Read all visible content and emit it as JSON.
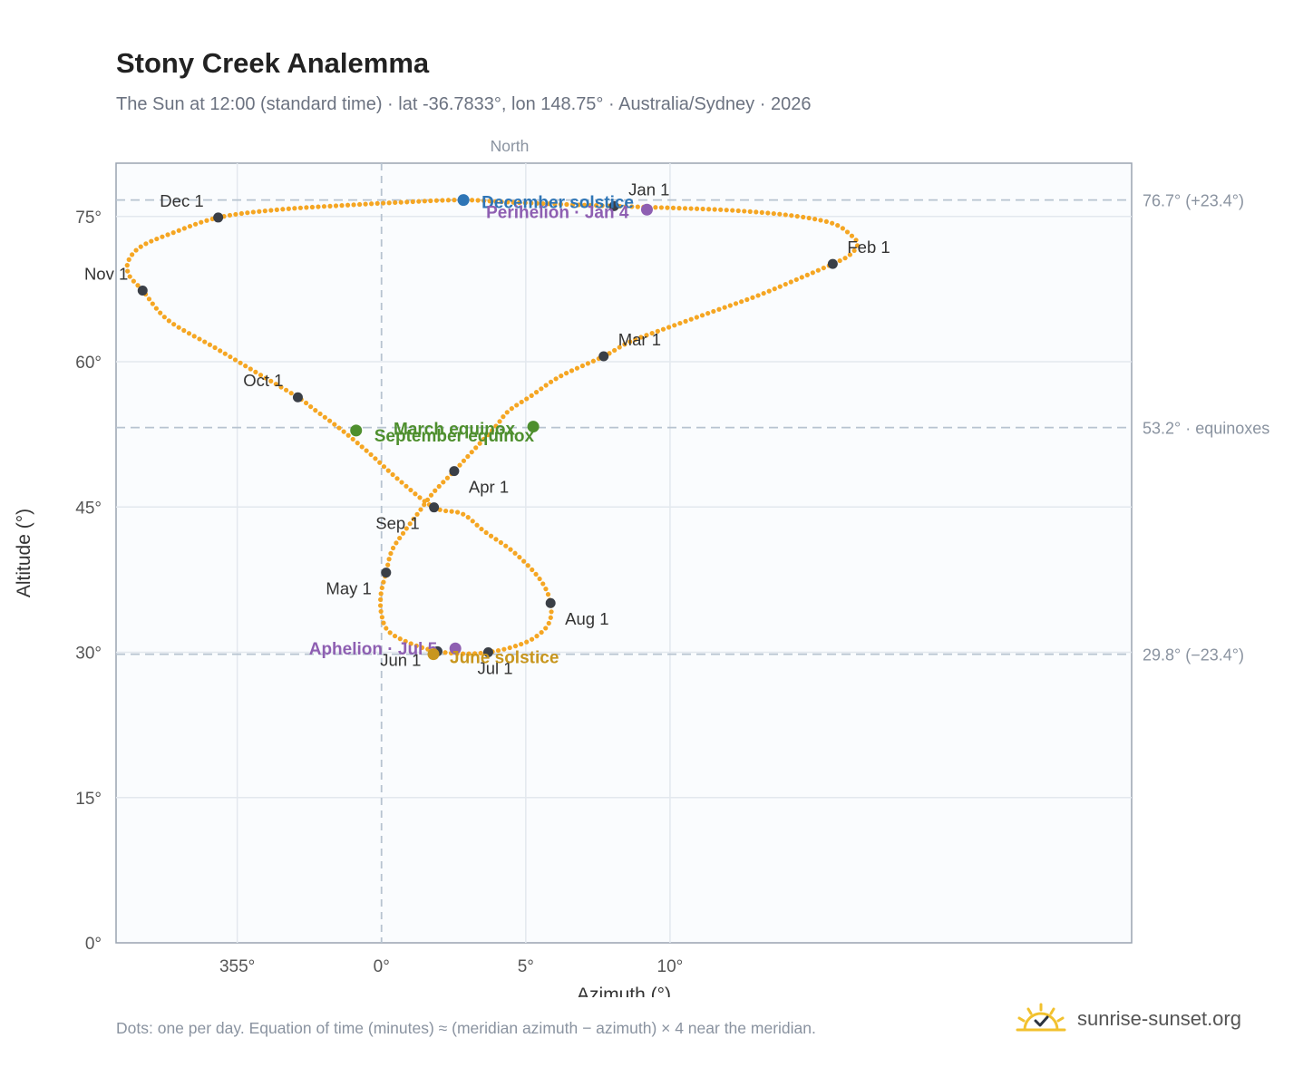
{
  "header": {
    "title": "Stony Creek Analemma",
    "subtitle": "The Sun at 12:00 (standard time) · lat -36.7833°, lon 148.75° · Australia/Sydney · 2026"
  },
  "footer": {
    "note": "Dots: one per day. Equation of time (minutes) ≈ (meridian azimuth − azimuth) × 4 near the meridian.",
    "brand": "sunrise-sunset.org"
  },
  "colors": {
    "curve": "#f5a623",
    "month_marker": "#3a3f47",
    "december_solstice": "#2e75b6",
    "june_solstice": "#c8961e",
    "equinox": "#4e8f2e",
    "apsis": "#8e5fb2",
    "axis": "#9aa3b0",
    "grid": "#e3e8ee",
    "plot_bg": "#fafcfe",
    "brand_sun": "#f2c12e"
  },
  "chart_data": {
    "type": "scatter",
    "title": "Stony Creek Analemma",
    "xlabel": "Azimuth (°)",
    "ylabel": "Altitude (°)",
    "north_label": "North",
    "xlim": [
      -4.6,
      13.0
    ],
    "ylim": [
      0,
      80.5
    ],
    "x_ticks": [
      {
        "value": -2.5,
        "label": "355°"
      },
      {
        "value": 0,
        "label": "0°"
      },
      {
        "value": 2.5,
        "label": "5°"
      },
      {
        "value": 5.0,
        "label": "10°"
      }
    ],
    "y_ticks": [
      {
        "value": 0,
        "label": "0°"
      },
      {
        "value": 15,
        "label": "15°"
      },
      {
        "value": 30,
        "label": "30°"
      },
      {
        "value": 45,
        "label": "45°"
      },
      {
        "value": 60,
        "label": "60°"
      },
      {
        "value": 75,
        "label": "75°"
      }
    ],
    "grid": true,
    "reference_lines": [
      {
        "y": 76.7,
        "label": "76.7° (+23.4°)"
      },
      {
        "y": 53.2,
        "label": "53.2° · equinoxes"
      },
      {
        "y": 29.8,
        "label": "29.8° (−23.4°)"
      }
    ],
    "series": [
      {
        "points": [
          [
            4.03,
            76.07
          ],
          [
            5.1,
            75.87
          ],
          [
            6.1,
            75.62
          ],
          [
            7.1,
            75.1
          ],
          [
            7.81,
            74.3
          ],
          [
            8.13,
            73.1
          ],
          [
            8.25,
            72.1
          ],
          [
            8.1,
            70.96
          ],
          [
            7.82,
            70.1
          ],
          [
            7.2,
            68.5
          ],
          [
            6.51,
            66.8
          ],
          [
            5.8,
            65.3
          ],
          [
            5.0,
            63.6
          ],
          [
            4.32,
            62.1
          ],
          [
            3.85,
            60.56
          ],
          [
            3.1,
            58.5
          ],
          [
            2.6,
            56.5
          ],
          [
            2.2,
            54.9
          ],
          [
            1.98,
            53.33
          ],
          [
            1.6,
            50.9
          ],
          [
            1.26,
            48.71
          ],
          [
            0.9,
            46.5
          ],
          [
            0.65,
            44.5
          ],
          [
            0.4,
            42.5
          ],
          [
            0.18,
            40.5
          ],
          [
            0.08,
            38.23
          ],
          [
            -0.01,
            36.0
          ],
          [
            0.0,
            33.9
          ],
          [
            0.13,
            32.12
          ],
          [
            0.55,
            30.8
          ],
          [
            0.97,
            30.1
          ],
          [
            1.4,
            29.85
          ],
          [
            1.85,
            30.0
          ],
          [
            2.3,
            30.6
          ],
          [
            2.65,
            31.5
          ],
          [
            2.9,
            33.0
          ],
          [
            2.93,
            35.08
          ],
          [
            2.75,
            37.5
          ],
          [
            2.3,
            40.3
          ],
          [
            1.78,
            42.5
          ],
          [
            1.4,
            44.3
          ],
          [
            0.91,
            44.96
          ],
          [
            0.3,
            47.8
          ],
          [
            -0.2,
            50.5
          ],
          [
            -0.7,
            53.0
          ],
          [
            -1.15,
            55.0
          ],
          [
            -1.45,
            56.33
          ],
          [
            -2.2,
            59.0
          ],
          [
            -2.9,
            61.5
          ],
          [
            -3.7,
            64.3
          ],
          [
            -4.14,
            67.35
          ],
          [
            -4.38,
            69.0
          ],
          [
            -4.38,
            70.5
          ],
          [
            -4.15,
            71.96
          ],
          [
            -3.62,
            73.3
          ],
          [
            -2.83,
            74.89
          ],
          [
            -1.8,
            75.7
          ],
          [
            -0.5,
            76.2
          ],
          [
            0.3,
            76.45
          ],
          [
            1.4,
            76.7
          ],
          [
            2.5,
            76.4
          ],
          [
            4.03,
            76.07
          ]
        ]
      }
    ],
    "month_markers": [
      {
        "label": "Jan 1",
        "x": 4.03,
        "y": 76.07
      },
      {
        "label": "Feb 1",
        "x": 7.82,
        "y": 70.1
      },
      {
        "label": "Mar 1",
        "x": 3.85,
        "y": 60.56
      },
      {
        "label": "Apr 1",
        "x": 1.26,
        "y": 48.71
      },
      {
        "label": "May 1",
        "x": 0.08,
        "y": 38.23
      },
      {
        "label": "Jun 1",
        "x": 0.97,
        "y": 30.1
      },
      {
        "label": "Jul 1",
        "x": 1.85,
        "y": 30.0
      },
      {
        "label": "Aug 1",
        "x": 2.93,
        "y": 35.08
      },
      {
        "label": "Sep 1",
        "x": 0.91,
        "y": 44.96
      },
      {
        "label": "Oct 1",
        "x": -1.45,
        "y": 56.33
      },
      {
        "label": "Nov 1",
        "x": -4.14,
        "y": 67.35
      },
      {
        "label": "Dec 1",
        "x": -2.83,
        "y": 74.89
      }
    ],
    "events": [
      {
        "label": "December solstice",
        "x": 1.42,
        "y": 76.7,
        "color": "#2e75b6"
      },
      {
        "label": "Perihelion · Jan 4",
        "x": 4.6,
        "y": 75.7,
        "color": "#8e5fb2"
      },
      {
        "label": "March equinox",
        "x": 2.63,
        "y": 53.3,
        "color": "#4e8f2e"
      },
      {
        "label": "September equinox",
        "x": -0.44,
        "y": 52.9,
        "color": "#4e8f2e"
      },
      {
        "label": "Aphelion · Jul 5",
        "x": 1.28,
        "y": 30.4,
        "color": "#8e5fb2"
      },
      {
        "label": "June solstice",
        "x": 0.9,
        "y": 29.8,
        "color": "#c8961e"
      }
    ]
  }
}
